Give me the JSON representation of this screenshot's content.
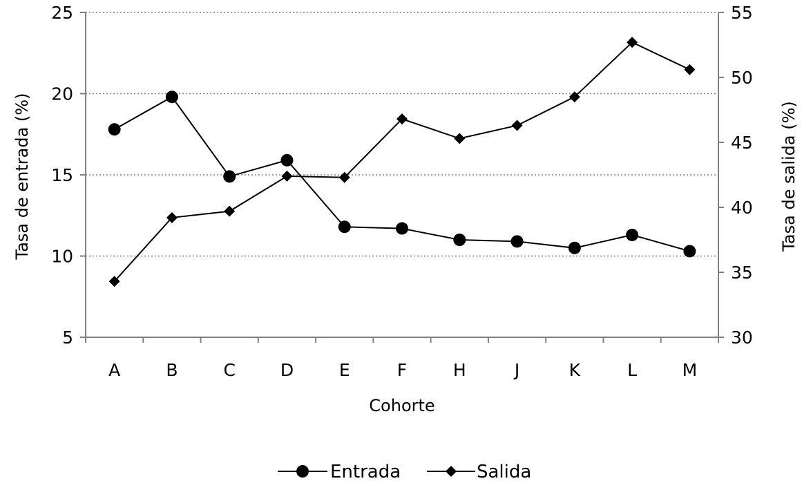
{
  "chart_data": {
    "type": "line",
    "categories": [
      "A",
      "B",
      "C",
      "D",
      "E",
      "F",
      "H",
      "J",
      "K",
      "L",
      "M"
    ],
    "xlabel": "Cohorte",
    "ylabel_left": "Tasa de entrada (%)",
    "ylabel_right": "Tasa de salida (%)",
    "ylim_left": [
      5,
      25
    ],
    "yticks_left": [
      "5",
      "10",
      "15",
      "20",
      "25"
    ],
    "ylim_right": [
      30,
      55
    ],
    "yticks_right": [
      "30",
      "35",
      "40",
      "45",
      "50",
      "55"
    ],
    "grid": true,
    "legend_position": "bottom",
    "series": [
      {
        "name": "Entrada",
        "axis": "left",
        "marker": "circle",
        "values": [
          17.8,
          19.8,
          14.9,
          15.9,
          11.8,
          11.7,
          11.0,
          10.9,
          10.5,
          11.3,
          10.3
        ]
      },
      {
        "name": "Salida",
        "axis": "right",
        "marker": "diamond",
        "values": [
          34.3,
          39.2,
          39.7,
          42.4,
          42.3,
          46.8,
          45.3,
          46.3,
          48.5,
          52.7,
          50.6
        ]
      }
    ]
  }
}
